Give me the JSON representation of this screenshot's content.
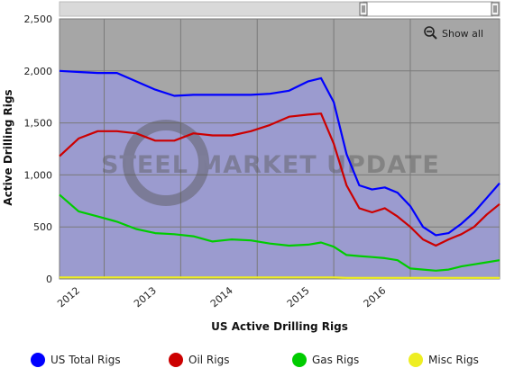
{
  "chart_data": {
    "type": "area",
    "xlabel": "US Active Drilling Rigs",
    "ylabel": "Active Drilling Rigs",
    "ylim": [
      0,
      2500
    ],
    "y_ticks": [
      "0",
      "500",
      "1,000",
      "1,500",
      "2,000",
      "2,500"
    ],
    "x_ticks": [
      "2012",
      "2013",
      "2014",
      "2015",
      "2016"
    ],
    "grid": true,
    "legend_position": "bottom",
    "plot_background": "#9b9bcf",
    "x": [
      "2011-06",
      "2011-09",
      "2011-12",
      "2012-03",
      "2012-06",
      "2012-09",
      "2012-12",
      "2013-03",
      "2013-06",
      "2013-09",
      "2013-12",
      "2014-03",
      "2014-06",
      "2014-09",
      "2014-11",
      "2015-01",
      "2015-03",
      "2015-05",
      "2015-07",
      "2015-09",
      "2015-11",
      "2016-01",
      "2016-03",
      "2016-05",
      "2016-07",
      "2016-09",
      "2016-11",
      "2017-01",
      "2017-03"
    ],
    "series": [
      {
        "name": "US Total Rigs",
        "color": "#0000ff",
        "values": [
          2000,
          1990,
          1980,
          1980,
          1900,
          1820,
          1760,
          1770,
          1770,
          1770,
          1770,
          1780,
          1810,
          1900,
          1930,
          1700,
          1200,
          900,
          860,
          880,
          830,
          700,
          500,
          420,
          440,
          530,
          640,
          780,
          920
        ]
      },
      {
        "name": "Oil Rigs",
        "color": "#cc0000",
        "values": [
          1180,
          1350,
          1420,
          1420,
          1400,
          1330,
          1330,
          1400,
          1380,
          1380,
          1420,
          1480,
          1560,
          1580,
          1590,
          1300,
          900,
          680,
          640,
          680,
          600,
          500,
          380,
          320,
          380,
          430,
          500,
          620,
          720
        ]
      },
      {
        "name": "Gas Rigs",
        "color": "#00cc00",
        "values": [
          810,
          650,
          600,
          550,
          480,
          440,
          430,
          410,
          360,
          380,
          370,
          340,
          320,
          330,
          350,
          310,
          230,
          220,
          210,
          200,
          180,
          100,
          90,
          80,
          90,
          120,
          140,
          160,
          180
        ]
      },
      {
        "name": "Misc Rigs",
        "color": "#eeee22",
        "values": [
          15,
          15,
          15,
          15,
          15,
          15,
          15,
          15,
          15,
          15,
          15,
          15,
          15,
          15,
          15,
          15,
          10,
          10,
          10,
          10,
          10,
          10,
          10,
          10,
          10,
          10,
          10,
          10,
          10
        ]
      }
    ]
  },
  "watermark": "STEEL MARKET UPDATE",
  "controls": {
    "show_all_label": "Show all"
  },
  "colors": {
    "accent": "#0000ff"
  }
}
